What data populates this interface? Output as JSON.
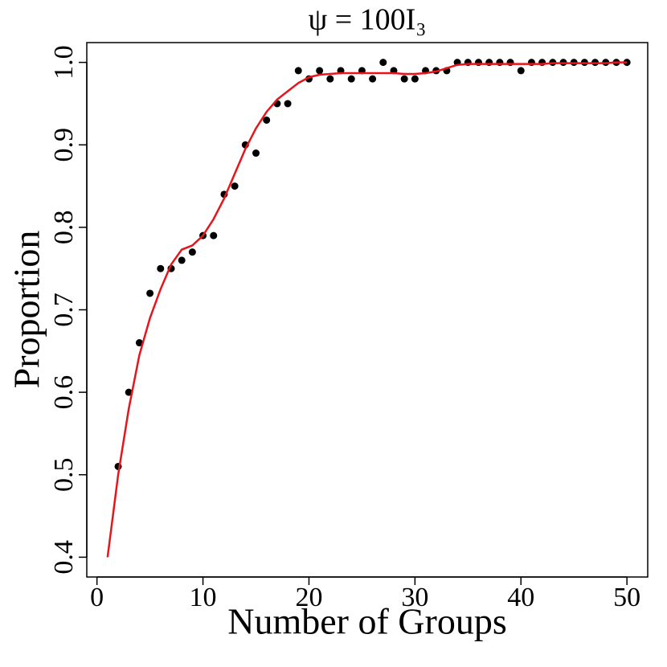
{
  "chart_data": {
    "type": "scatter",
    "title": "ψ = 100I₃",
    "x_label": "Number of Groups",
    "y_label": "Proportion",
    "xlim": [
      -0.96,
      51.96
    ],
    "ylim": [
      0.376,
      1.024
    ],
    "xticks": [
      0,
      10,
      20,
      30,
      40,
      50
    ],
    "yticks": [
      {
        "value": 0.4,
        "label": "0.4"
      },
      {
        "value": 0.5,
        "label": "0.5"
      },
      {
        "value": 0.6,
        "label": "0.6"
      },
      {
        "value": 0.7,
        "label": "0.7"
      },
      {
        "value": 0.8,
        "label": "0.8"
      },
      {
        "value": 0.9,
        "label": "0.9"
      },
      {
        "value": 1.0,
        "label": "1.0"
      }
    ],
    "series": [
      {
        "type": "scatter",
        "color": "#000000",
        "x": [
          2,
          3,
          4,
          5,
          6,
          7,
          8,
          9,
          10,
          11,
          12,
          13,
          14,
          15,
          16,
          17,
          18,
          19,
          20,
          21,
          22,
          23,
          24,
          25,
          26,
          27,
          28,
          29,
          30,
          31,
          32,
          33,
          34,
          35,
          36,
          37,
          38,
          39,
          40,
          41,
          42,
          43,
          44,
          45,
          46,
          47,
          48,
          49,
          50
        ],
        "values": [
          0.51,
          0.6,
          0.66,
          0.72,
          0.75,
          0.75,
          0.76,
          0.77,
          0.79,
          0.79,
          0.84,
          0.85,
          0.9,
          0.89,
          0.93,
          0.95,
          0.95,
          0.99,
          0.98,
          0.99,
          0.98,
          0.99,
          0.98,
          0.99,
          0.98,
          1.0,
          0.99,
          0.98,
          0.98,
          0.99,
          0.99,
          0.99,
          1.0,
          1.0,
          1.0,
          1.0,
          1.0,
          1.0,
          0.99,
          1.0,
          1.0,
          1.0,
          1.0,
          1.0,
          1.0,
          1.0,
          1.0,
          1.0,
          1.0
        ]
      },
      {
        "type": "line",
        "color": "#e8141c",
        "x": [
          1,
          2,
          3,
          4,
          5,
          6,
          7,
          8,
          9,
          10,
          11,
          12,
          13,
          14,
          15,
          16,
          17,
          18,
          19,
          20,
          21,
          22,
          23,
          24,
          25,
          26,
          27,
          28,
          29,
          30,
          31,
          32,
          33,
          34,
          35,
          36,
          37,
          38,
          39,
          40,
          41,
          42,
          43,
          44,
          45,
          46,
          47,
          48,
          49,
          50
        ],
        "values": [
          0.4,
          0.5,
          0.58,
          0.645,
          0.69,
          0.725,
          0.755,
          0.773,
          0.778,
          0.79,
          0.81,
          0.835,
          0.865,
          0.895,
          0.92,
          0.94,
          0.955,
          0.965,
          0.975,
          0.982,
          0.985,
          0.986,
          0.987,
          0.987,
          0.987,
          0.987,
          0.987,
          0.987,
          0.986,
          0.986,
          0.987,
          0.989,
          0.993,
          0.997,
          0.998,
          0.998,
          0.998,
          0.998,
          0.998,
          0.998,
          0.998,
          0.998,
          0.999,
          0.999,
          0.999,
          0.999,
          0.999,
          0.999,
          1.0,
          1.0
        ]
      }
    ]
  }
}
